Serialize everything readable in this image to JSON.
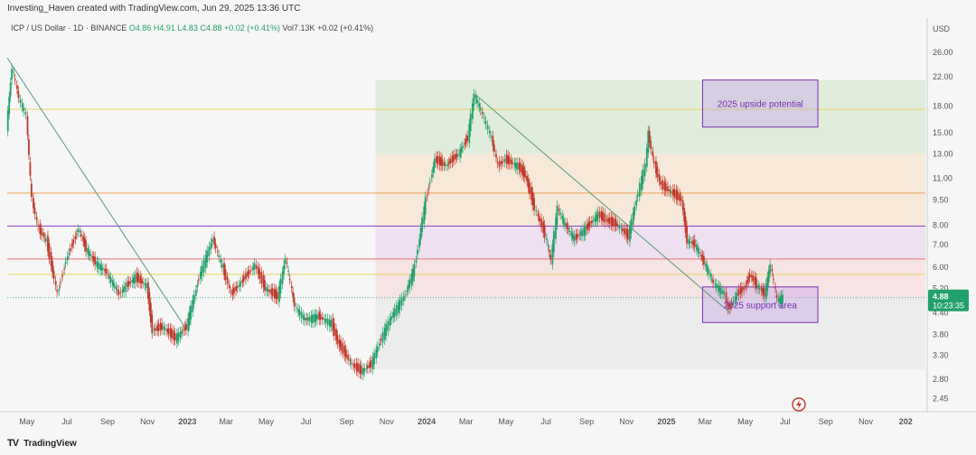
{
  "header": {
    "creator": "Investing_Haven created with TradingView.com, Jun 29, 2025 13:36 UTC"
  },
  "symbol_line": {
    "symbol": "ICP / US Dollar · 1D · BINANCE",
    "ohlc": "O4.86 H4.91 L4.83 C4.88 +0.02 (+0.41%)",
    "volume": "Vol7.13K +0.02 (+0.41%)"
  },
  "footer": {
    "brand": "TradingView",
    "logo_text": "TV"
  },
  "colors": {
    "candle_up": "#22a06b",
    "candle_down": "#c0392b",
    "price_label": "#22a06b",
    "box_purple": "#7a2fb0",
    "fib_line_yellow": "#e6d85a",
    "fib_line_orange": "#f0a050",
    "fib_line_purple": "#8a3fc2"
  },
  "chart_data": {
    "type": "line",
    "ylabel": "USD",
    "yscale": "log",
    "ylim": [
      2.3,
      29
    ],
    "xlim": [
      "2022-04-01",
      "2026-01-31"
    ],
    "y_ticks": [
      26.0,
      22.0,
      18.0,
      15.0,
      13.0,
      11.0,
      9.5,
      8.0,
      7.0,
      6.0,
      5.2,
      4.4,
      3.8,
      3.3,
      2.8,
      2.45
    ],
    "y_tick_labels": [
      "26.00",
      "22.00",
      "18.00",
      "15.00",
      "13.00",
      "11.00",
      "9.50",
      "8.00",
      "7.00",
      "6.00",
      "5.20",
      "4.40",
      "3.80",
      "3.30",
      "2.80",
      "2.45"
    ],
    "x_ticks": [
      {
        "date": "2022-05-01",
        "label": "May"
      },
      {
        "date": "2022-07-01",
        "label": "Jul"
      },
      {
        "date": "2022-09-01",
        "label": "Sep"
      },
      {
        "date": "2022-11-01",
        "label": "Nov"
      },
      {
        "date": "2023-01-01",
        "label": "2023"
      },
      {
        "date": "2023-03-01",
        "label": "Mar"
      },
      {
        "date": "2023-05-01",
        "label": "May"
      },
      {
        "date": "2023-07-01",
        "label": "Jul"
      },
      {
        "date": "2023-09-01",
        "label": "Sep"
      },
      {
        "date": "2023-11-01",
        "label": "Nov"
      },
      {
        "date": "2024-01-01",
        "label": "2024"
      },
      {
        "date": "2024-03-01",
        "label": "Mar"
      },
      {
        "date": "2024-05-01",
        "label": "May"
      },
      {
        "date": "2024-07-01",
        "label": "Jul"
      },
      {
        "date": "2024-09-01",
        "label": "Sep"
      },
      {
        "date": "2024-11-01",
        "label": "Nov"
      },
      {
        "date": "2025-01-01",
        "label": "2025"
      },
      {
        "date": "2025-03-01",
        "label": "Mar"
      },
      {
        "date": "2025-05-01",
        "label": "May"
      },
      {
        "date": "2025-07-01",
        "label": "Jul"
      },
      {
        "date": "2025-09-01",
        "label": "Sep"
      },
      {
        "date": "2025-11-01",
        "label": "Nov"
      },
      {
        "date": "2026-01-01",
        "label": "202"
      }
    ],
    "series": [
      {
        "values": [
          {
            "x": "2022-04-01",
            "y": 15.5
          },
          {
            "x": "2022-04-10",
            "y": 23.5
          },
          {
            "x": "2022-04-20",
            "y": 19.0
          },
          {
            "x": "2022-05-01",
            "y": 17.0
          },
          {
            "x": "2022-05-10",
            "y": 9.5
          },
          {
            "x": "2022-05-20",
            "y": 7.8
          },
          {
            "x": "2022-06-01",
            "y": 7.2
          },
          {
            "x": "2022-06-18",
            "y": 5.0
          },
          {
            "x": "2022-07-01",
            "y": 6.3
          },
          {
            "x": "2022-07-20",
            "y": 7.8
          },
          {
            "x": "2022-08-01",
            "y": 6.8
          },
          {
            "x": "2022-08-15",
            "y": 6.2
          },
          {
            "x": "2022-09-01",
            "y": 5.8
          },
          {
            "x": "2022-09-20",
            "y": 5.0
          },
          {
            "x": "2022-10-01",
            "y": 5.3
          },
          {
            "x": "2022-10-15",
            "y": 5.6
          },
          {
            "x": "2022-11-01",
            "y": 5.3
          },
          {
            "x": "2022-11-10",
            "y": 3.9
          },
          {
            "x": "2022-11-25",
            "y": 4.0
          },
          {
            "x": "2022-12-15",
            "y": 3.7
          },
          {
            "x": "2023-01-01",
            "y": 4.0
          },
          {
            "x": "2023-01-20",
            "y": 5.6
          },
          {
            "x": "2023-02-10",
            "y": 7.3
          },
          {
            "x": "2023-02-25",
            "y": 6.0
          },
          {
            "x": "2023-03-10",
            "y": 5.0
          },
          {
            "x": "2023-03-25",
            "y": 5.4
          },
          {
            "x": "2023-04-15",
            "y": 6.1
          },
          {
            "x": "2023-05-01",
            "y": 5.2
          },
          {
            "x": "2023-05-20",
            "y": 4.9
          },
          {
            "x": "2023-06-01",
            "y": 6.4
          },
          {
            "x": "2023-06-15",
            "y": 4.6
          },
          {
            "x": "2023-07-01",
            "y": 4.2
          },
          {
            "x": "2023-07-20",
            "y": 4.3
          },
          {
            "x": "2023-08-10",
            "y": 4.1
          },
          {
            "x": "2023-08-20",
            "y": 3.6
          },
          {
            "x": "2023-09-10",
            "y": 3.1
          },
          {
            "x": "2023-09-25",
            "y": 2.95
          },
          {
            "x": "2023-10-10",
            "y": 3.1
          },
          {
            "x": "2023-10-25",
            "y": 3.7
          },
          {
            "x": "2023-11-10",
            "y": 4.3
          },
          {
            "x": "2023-12-01",
            "y": 5.0
          },
          {
            "x": "2023-12-15",
            "y": 6.0
          },
          {
            "x": "2024-01-01",
            "y": 9.5
          },
          {
            "x": "2024-01-15",
            "y": 12.5
          },
          {
            "x": "2024-02-01",
            "y": 12.0
          },
          {
            "x": "2024-02-20",
            "y": 13.0
          },
          {
            "x": "2024-03-05",
            "y": 14.5
          },
          {
            "x": "2024-03-15",
            "y": 19.5
          },
          {
            "x": "2024-03-25",
            "y": 17.5
          },
          {
            "x": "2024-04-10",
            "y": 14.5
          },
          {
            "x": "2024-04-20",
            "y": 12.0
          },
          {
            "x": "2024-05-01",
            "y": 12.5
          },
          {
            "x": "2024-05-20",
            "y": 12.0
          },
          {
            "x": "2024-06-01",
            "y": 11.2
          },
          {
            "x": "2024-06-15",
            "y": 9.0
          },
          {
            "x": "2024-07-01",
            "y": 7.5
          },
          {
            "x": "2024-07-10",
            "y": 6.3
          },
          {
            "x": "2024-07-20",
            "y": 9.0
          },
          {
            "x": "2024-08-01",
            "y": 8.0
          },
          {
            "x": "2024-08-15",
            "y": 7.3
          },
          {
            "x": "2024-09-01",
            "y": 7.8
          },
          {
            "x": "2024-09-20",
            "y": 8.6
          },
          {
            "x": "2024-10-01",
            "y": 8.3
          },
          {
            "x": "2024-10-20",
            "y": 8.0
          },
          {
            "x": "2024-11-05",
            "y": 7.4
          },
          {
            "x": "2024-11-20",
            "y": 10.0
          },
          {
            "x": "2024-12-01",
            "y": 12.0
          },
          {
            "x": "2024-12-05",
            "y": 15.0
          },
          {
            "x": "2024-12-15",
            "y": 12.0
          },
          {
            "x": "2024-12-25",
            "y": 10.5
          },
          {
            "x": "2025-01-10",
            "y": 10.0
          },
          {
            "x": "2025-01-25",
            "y": 9.5
          },
          {
            "x": "2025-02-03",
            "y": 7.2
          },
          {
            "x": "2025-02-15",
            "y": 7.0
          },
          {
            "x": "2025-03-01",
            "y": 6.2
          },
          {
            "x": "2025-03-15",
            "y": 5.4
          },
          {
            "x": "2025-04-01",
            "y": 5.0
          },
          {
            "x": "2025-04-07",
            "y": 4.5
          },
          {
            "x": "2025-04-20",
            "y": 5.0
          },
          {
            "x": "2025-05-01",
            "y": 5.2
          },
          {
            "x": "2025-05-10",
            "y": 5.7
          },
          {
            "x": "2025-05-20",
            "y": 5.3
          },
          {
            "x": "2025-06-01",
            "y": 5.0
          },
          {
            "x": "2025-06-10",
            "y": 6.1
          },
          {
            "x": "2025-06-20",
            "y": 4.8
          },
          {
            "x": "2025-06-29",
            "y": 4.88
          }
        ]
      }
    ],
    "horizontal_lines": [
      {
        "y": 17.6,
        "color": "#e6d85a"
      },
      {
        "y": 9.95,
        "color": "#f0a050"
      },
      {
        "y": 7.95,
        "color": "#8a3fc2"
      },
      {
        "y": 6.35,
        "color": "#e87070"
      },
      {
        "y": 5.72,
        "color": "#e6d85a"
      }
    ],
    "fib_zones": [
      {
        "x0": "2023-10-15",
        "x1": "2026-01-31",
        "y0": 13.0,
        "y1": 21.5,
        "color": "#d9ead3"
      },
      {
        "x0": "2023-10-15",
        "x1": "2026-01-31",
        "y0": 7.95,
        "y1": 13.0,
        "color": "#f6e4d0"
      },
      {
        "x0": "2023-10-15",
        "x1": "2026-01-31",
        "y0": 6.35,
        "y1": 7.95,
        "color": "#ecdaf0"
      },
      {
        "x0": "2023-10-15",
        "x1": "2026-01-31",
        "y0": 4.88,
        "y1": 6.35,
        "color": "#f6dede"
      },
      {
        "x0": "2023-10-15",
        "x1": "2026-01-31",
        "y0": 3.0,
        "y1": 4.88,
        "color": "#e8e8e8"
      }
    ],
    "trendlines": [
      {
        "x0": "2022-04-01",
        "y0": 25.0,
        "x1": "2022-12-28",
        "y1": 4.0
      },
      {
        "x0": "2024-03-15",
        "y0": 19.5,
        "x1": "2025-04-08",
        "y1": 4.4
      }
    ],
    "annotations": [
      {
        "text": "2025 upside potential",
        "x0": "2025-02-25",
        "x1": "2025-08-20",
        "y0": 15.6,
        "y1": 21.5
      },
      {
        "text": "2025 support area",
        "x0": "2025-02-25",
        "x1": "2025-08-20",
        "y0": 4.12,
        "y1": 5.25
      }
    ],
    "last_price": {
      "value": "4.88",
      "countdown": "10:23:35"
    }
  }
}
